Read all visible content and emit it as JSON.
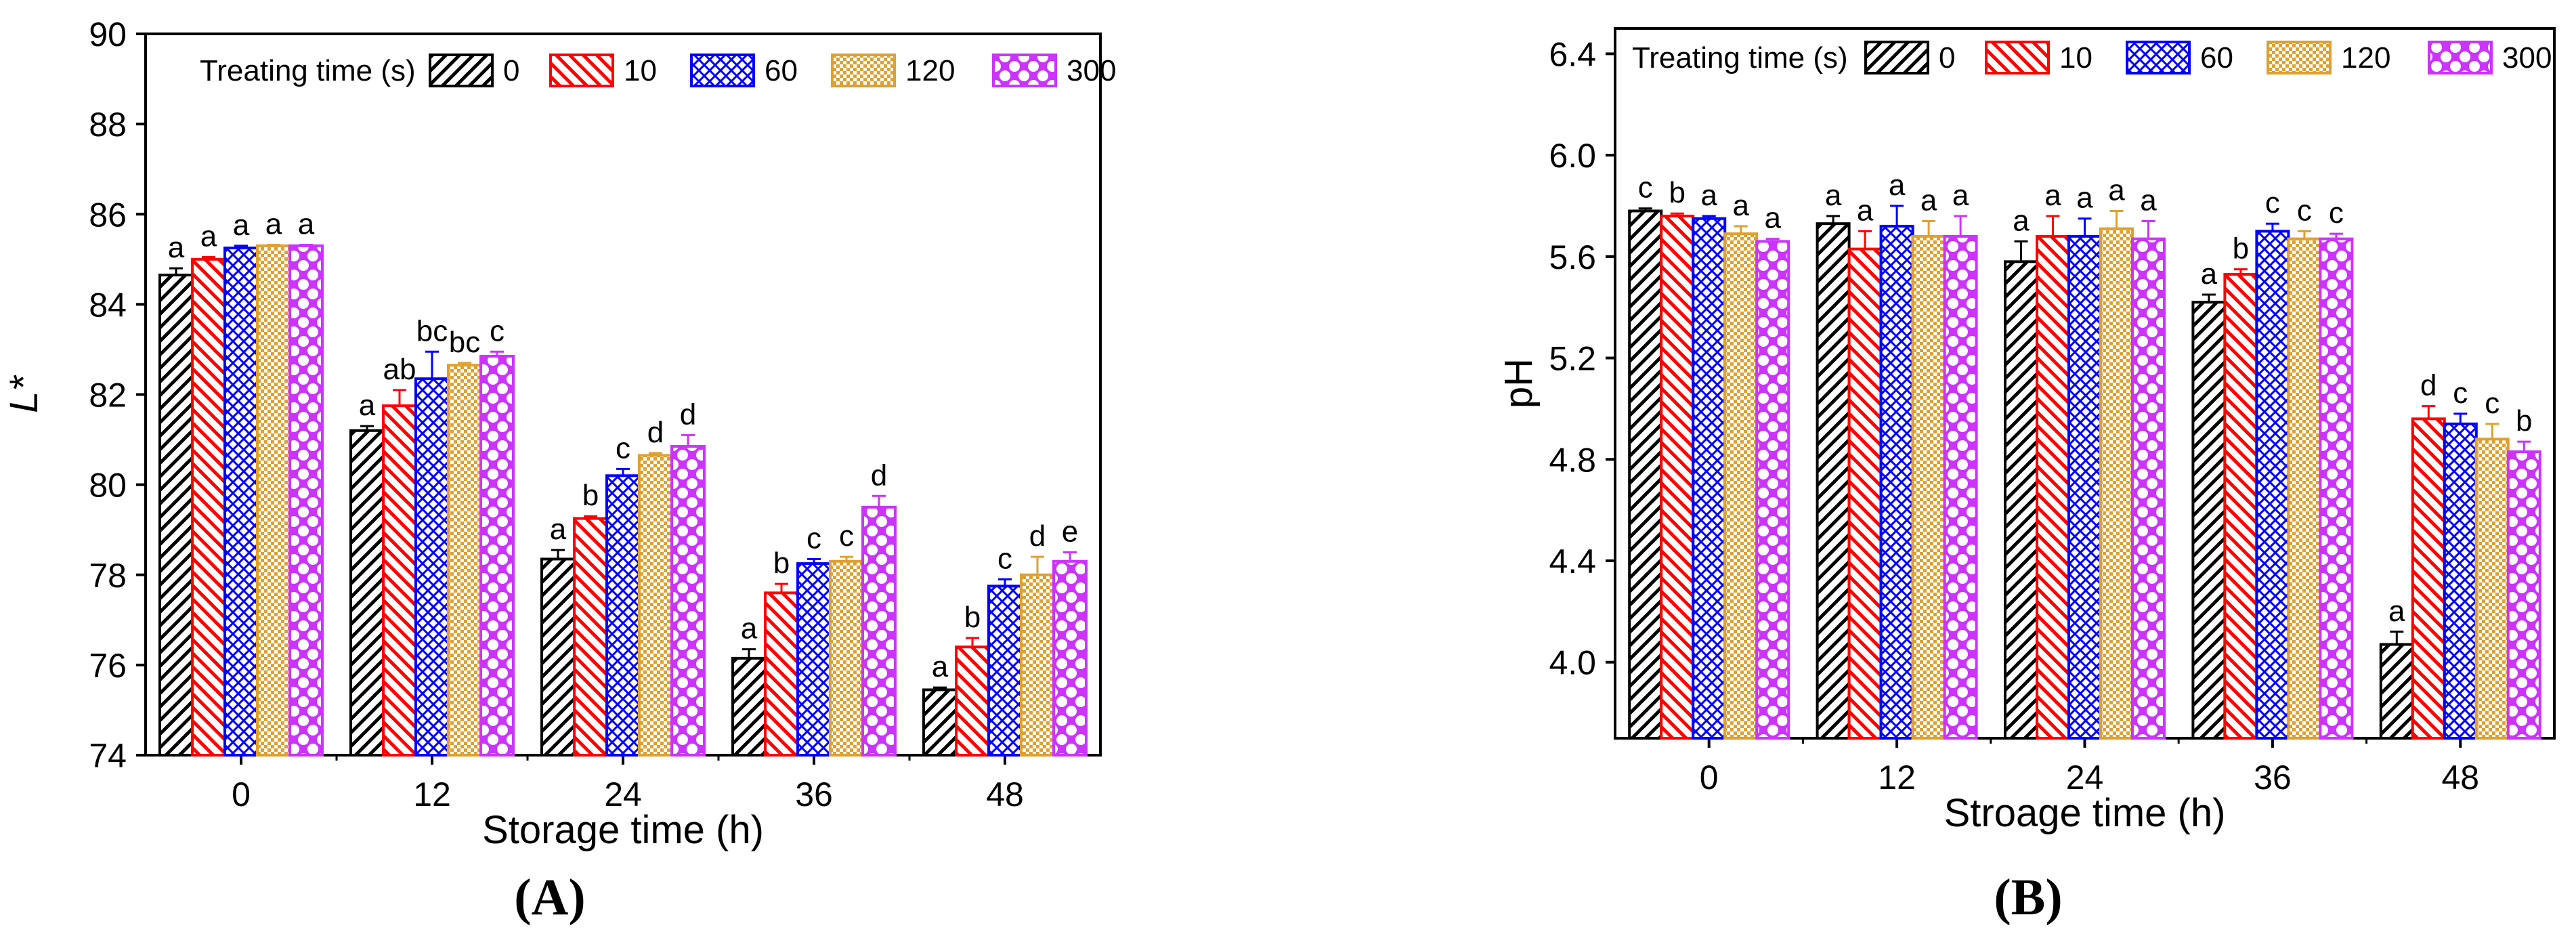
{
  "chart_data": [
    {
      "type": "bar",
      "panel_label": "(A)",
      "title": "",
      "xlabel": "Storage time (h)",
      "ylabel": "L*",
      "ylim": [
        74,
        90
      ],
      "yticks": [
        74,
        76,
        78,
        80,
        82,
        84,
        86,
        88,
        90
      ],
      "categories": [
        "0",
        "12",
        "24",
        "36",
        "48"
      ],
      "legend_title": "Treating time (s)",
      "legend_position": "top",
      "series": [
        {
          "name": "0",
          "color": "#000000",
          "pattern": "diag-right",
          "values": [
            84.65,
            81.2,
            78.35,
            76.15,
            75.45
          ],
          "errors": [
            0.15,
            0.1,
            0.2,
            0.2,
            0.05
          ],
          "labels": [
            "a",
            "a",
            "a",
            "a",
            "a"
          ]
        },
        {
          "name": "10",
          "color": "#ff0000",
          "pattern": "diag-left",
          "values": [
            85.0,
            81.75,
            79.25,
            77.6,
            76.4
          ],
          "errors": [
            0.05,
            0.35,
            0.05,
            0.2,
            0.2
          ],
          "labels": [
            "a",
            "ab",
            "b",
            "b",
            "b"
          ]
        },
        {
          "name": "60",
          "color": "#0000ff",
          "pattern": "cross-hatch",
          "values": [
            85.25,
            82.35,
            80.2,
            78.25,
            77.75
          ],
          "errors": [
            0.05,
            0.6,
            0.15,
            0.1,
            0.15
          ],
          "labels": [
            "a",
            "bc",
            "c",
            "c",
            "c"
          ]
        },
        {
          "name": "120",
          "color": "#e0a030",
          "pattern": "checker",
          "values": [
            85.3,
            82.65,
            80.65,
            78.3,
            78.0
          ],
          "errors": [
            0.02,
            0.05,
            0.05,
            0.1,
            0.4
          ],
          "labels": [
            "a",
            "bc",
            "d",
            "c",
            "d"
          ]
        },
        {
          "name": "300",
          "color": "#cc33ff",
          "pattern": "dots",
          "values": [
            85.3,
            82.85,
            80.85,
            79.5,
            78.3
          ],
          "errors": [
            0.02,
            0.1,
            0.25,
            0.25,
            0.2
          ],
          "labels": [
            "a",
            "c",
            "d",
            "d",
            "e"
          ]
        }
      ]
    },
    {
      "type": "bar",
      "panel_label": "(B)",
      "title": "",
      "xlabel": "Stroage time (h)",
      "ylabel": "pH",
      "ylim": [
        3.7,
        6.5
      ],
      "yticks": [
        4.0,
        4.4,
        4.8,
        5.2,
        5.6,
        6.0,
        6.4
      ],
      "ytick_labels": [
        "4.0",
        "4.4",
        "4.8",
        "5.2",
        "5.6",
        "6.0",
        "6.4"
      ],
      "categories": [
        "0",
        "12",
        "24",
        "36",
        "48"
      ],
      "legend_title": "Treating time (s)",
      "legend_position": "top",
      "series": [
        {
          "name": "0",
          "color": "#000000",
          "pattern": "diag-right",
          "values": [
            5.78,
            5.73,
            5.58,
            5.42,
            4.07
          ],
          "errors": [
            0.01,
            0.03,
            0.08,
            0.03,
            0.05
          ],
          "labels": [
            "c",
            "a",
            "a",
            "a",
            "a"
          ]
        },
        {
          "name": "10",
          "color": "#ff0000",
          "pattern": "diag-left",
          "values": [
            5.76,
            5.63,
            5.68,
            5.53,
            4.96
          ],
          "errors": [
            0.01,
            0.07,
            0.08,
            0.02,
            0.05
          ],
          "labels": [
            "b",
            "a",
            "a",
            "b",
            "d"
          ]
        },
        {
          "name": "60",
          "color": "#0000ff",
          "pattern": "cross-hatch",
          "values": [
            5.75,
            5.72,
            5.68,
            5.7,
            4.94
          ],
          "errors": [
            0.01,
            0.08,
            0.07,
            0.03,
            0.04
          ],
          "labels": [
            "a",
            "a",
            "a",
            "c",
            "c"
          ]
        },
        {
          "name": "120",
          "color": "#e0a030",
          "pattern": "checker",
          "values": [
            5.69,
            5.68,
            5.71,
            5.67,
            4.88
          ],
          "errors": [
            0.03,
            0.06,
            0.07,
            0.03,
            0.06
          ],
          "labels": [
            "a",
            "a",
            "a",
            "c",
            "c"
          ]
        },
        {
          "name": "300",
          "color": "#cc33ff",
          "pattern": "dots",
          "values": [
            5.66,
            5.68,
            5.67,
            5.67,
            4.83
          ],
          "errors": [
            0.01,
            0.08,
            0.07,
            0.02,
            0.04
          ],
          "labels": [
            "a",
            "a",
            "a",
            "c",
            "b"
          ]
        }
      ]
    }
  ]
}
